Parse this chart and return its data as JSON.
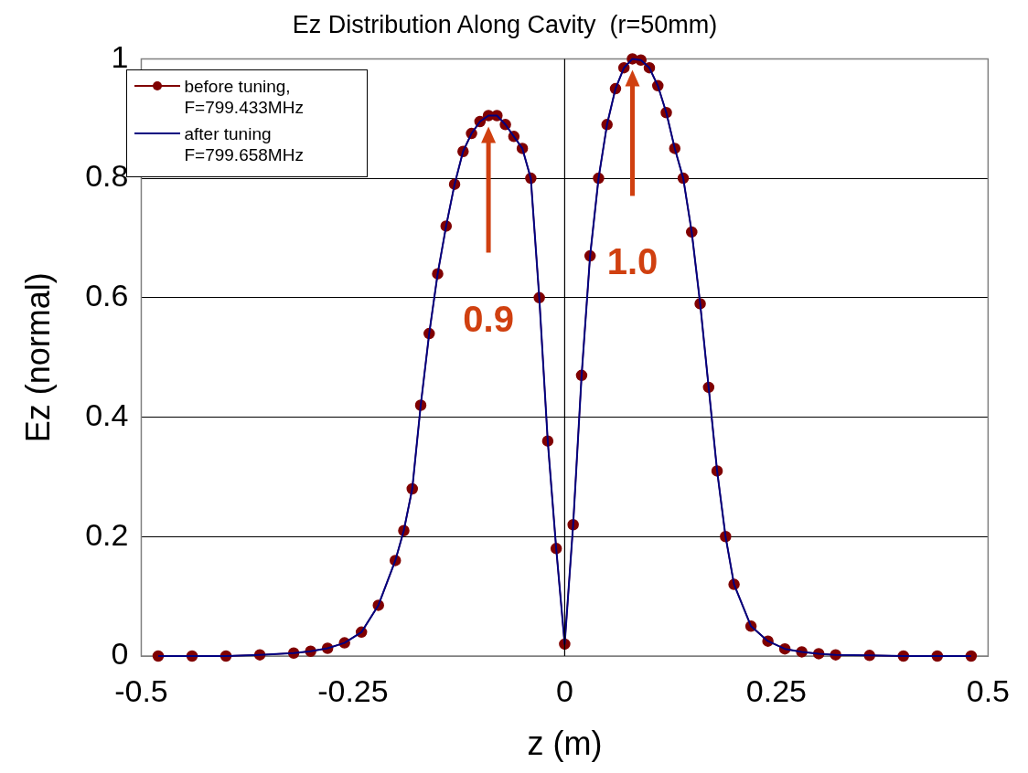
{
  "chart_data": {
    "type": "line",
    "title": "Ez Distribution Along Cavity  (r=50mm)",
    "xlabel": "z (m)",
    "ylabel": "Ez (normal)",
    "x": [
      -0.48,
      -0.44,
      -0.4,
      -0.36,
      -0.32,
      -0.3,
      -0.28,
      -0.26,
      -0.24,
      -0.22,
      -0.2,
      -0.19,
      -0.18,
      -0.17,
      -0.16,
      -0.15,
      -0.14,
      -0.13,
      -0.12,
      -0.11,
      -0.1,
      -0.09,
      -0.08,
      -0.07,
      -0.06,
      -0.05,
      -0.04,
      -0.03,
      -0.02,
      -0.01,
      0,
      0.01,
      0.02,
      0.03,
      0.04,
      0.05,
      0.06,
      0.07,
      0.08,
      0.09,
      0.1,
      0.11,
      0.12,
      0.13,
      0.14,
      0.15,
      0.16,
      0.17,
      0.18,
      0.19,
      0.2,
      0.22,
      0.24,
      0.26,
      0.28,
      0.3,
      0.32,
      0.36,
      0.4,
      0.44,
      0.48
    ],
    "series": [
      {
        "name": "before tuning, F=799.433MHz",
        "color": "#800000",
        "marker": "circle",
        "values": [
          0,
          0,
          0,
          0.002,
          0.005,
          0.008,
          0.013,
          0.022,
          0.04,
          0.085,
          0.16,
          0.21,
          0.28,
          0.42,
          0.54,
          0.64,
          0.72,
          0.79,
          0.845,
          0.875,
          0.895,
          0.905,
          0.905,
          0.89,
          0.87,
          0.85,
          0.8,
          0.6,
          0.36,
          0.18,
          0.02,
          0.22,
          0.47,
          0.67,
          0.8,
          0.89,
          0.95,
          0.985,
          1.0,
          0.998,
          0.985,
          0.955,
          0.91,
          0.85,
          0.8,
          0.71,
          0.59,
          0.45,
          0.31,
          0.2,
          0.12,
          0.05,
          0.025,
          0.012,
          0.007,
          0.004,
          0.002,
          0.001,
          0,
          0,
          0
        ]
      },
      {
        "name": "after tuning F=799.658MHz",
        "color": "#000080",
        "marker": "none",
        "values": [
          0,
          0,
          0,
          0.002,
          0.005,
          0.008,
          0.013,
          0.022,
          0.04,
          0.085,
          0.16,
          0.21,
          0.28,
          0.42,
          0.54,
          0.64,
          0.72,
          0.79,
          0.845,
          0.875,
          0.895,
          0.905,
          0.905,
          0.89,
          0.87,
          0.85,
          0.8,
          0.6,
          0.36,
          0.18,
          0.02,
          0.22,
          0.47,
          0.67,
          0.8,
          0.89,
          0.95,
          0.985,
          1.0,
          0.998,
          0.985,
          0.955,
          0.91,
          0.85,
          0.8,
          0.71,
          0.59,
          0.45,
          0.31,
          0.2,
          0.12,
          0.05,
          0.025,
          0.012,
          0.007,
          0.004,
          0.002,
          0.001,
          0,
          0,
          0
        ]
      }
    ],
    "xlim": [
      -0.5,
      0.5
    ],
    "xticks": [
      -0.5,
      -0.25,
      0,
      0.25,
      0.5
    ],
    "ylim": [
      0,
      1
    ],
    "yticks": [
      0,
      0.2,
      0.4,
      0.6,
      0.8,
      1
    ],
    "grid": "y",
    "legend": "top left",
    "line_style": "solid",
    "ref_lines": [
      {
        "axis": "x",
        "value": 0,
        "color": "#000000"
      }
    ],
    "annotations": [
      "0.9",
      "1.0"
    ]
  }
}
